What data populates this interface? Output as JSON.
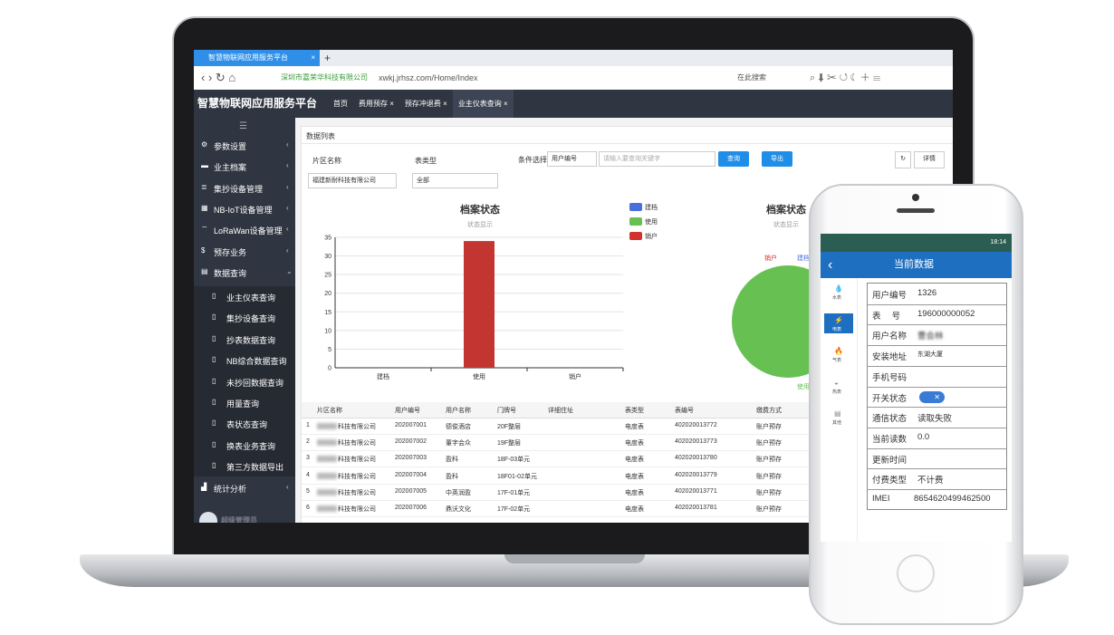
{
  "browser": {
    "tab": "智慧物联网应用服务平台",
    "site": "深圳市嘉荣华科技有限公司",
    "url": "xwkj.jrhsz.com/Home/Index",
    "search": "在此搜索"
  },
  "app": {
    "logo": "智慧物联网应用服务平台",
    "tabs": [
      "首页",
      "费用预存",
      "预存冲退费",
      "业主仪表查询"
    ],
    "menu": [
      "参数设置",
      "业主档案",
      "集抄设备管理",
      "NB-IoT设备管理",
      "LoRaWan设备管理",
      "预存业务",
      "数据查询"
    ],
    "submenu": [
      "业主仪表查询",
      "集抄设备查询",
      "抄表数据查询",
      "NB综合数据查询",
      "未抄回数据查询",
      "用量查询",
      "表状态查询",
      "换表业务查询",
      "第三方数据导出"
    ],
    "menu_last": "统计分析",
    "user": "超级管理员",
    "panel_title": "数据列表",
    "filters": {
      "area_label": "片区名称",
      "area_value": "福建新耐科技有限公司",
      "type_label": "表类型",
      "type_value": "全部",
      "cond_label": "条件选择",
      "cond_value": "用户编号",
      "placeholder": "请输入要查询关键字",
      "search": "查询",
      "export": "导出",
      "detail": "详情"
    },
    "table": {
      "columns": [
        "片区名称",
        "用户编号",
        "用户名称",
        "门牌号",
        "详细住址",
        "表类型",
        "表编号",
        "缴费方式"
      ],
      "rows": [
        [
          "1",
          "科技有限公司",
          "202007001",
          "德俊酒店",
          "20F整层",
          null,
          "电度表",
          "402020013772",
          "账户预存"
        ],
        [
          "2",
          "科技有限公司",
          "202007002",
          "董字会众",
          "19F整层",
          null,
          "电度表",
          "402020013773",
          "账户预存"
        ],
        [
          "3",
          "科技有限公司",
          "202007003",
          "盈科",
          "18F-03单元",
          null,
          "电度表",
          "402020013780",
          "账户预存"
        ],
        [
          "4",
          "科技有限公司",
          "202007004",
          "盈科",
          "18F01-02单元",
          null,
          "电度表",
          "402020013779",
          "账户预存"
        ],
        [
          "5",
          "科技有限公司",
          "202007005",
          "中英润盈",
          "17F-01单元",
          null,
          "电度表",
          "402020013771",
          "账户预存"
        ],
        [
          "6",
          "科技有限公司",
          "202007006",
          "鼎沃文化",
          "17F-02单元",
          null,
          "电度表",
          "402020013781",
          "账户预存"
        ]
      ]
    }
  },
  "chart_data": [
    {
      "type": "bar",
      "title": "档案状态",
      "subtitle": "状态显示",
      "categories": [
        "建档",
        "使用",
        "销户"
      ],
      "values": [
        0,
        34,
        0
      ],
      "color": "#c23531",
      "ylim": [
        0,
        35
      ],
      "yticks": [
        0,
        5,
        10,
        15,
        20,
        25,
        30,
        35
      ],
      "grid": true
    },
    {
      "type": "pie",
      "title": "档案状态",
      "subtitle": "状态显示",
      "categories": [
        "建档",
        "使用",
        "销户"
      ],
      "values": [
        0,
        34,
        0
      ],
      "colors": [
        "#4a6fdc",
        "#67c152",
        "#d2312e"
      ],
      "legend": "left"
    }
  ],
  "phone": {
    "time": "18:14",
    "title": "当前数据",
    "icons": [
      "水表",
      "电表",
      "气表",
      "热表",
      "其他"
    ],
    "fields": [
      {
        "label": "用户编号",
        "value": "1326"
      },
      {
        "label": "表　 号",
        "value": "196000000052"
      },
      {
        "label": "用户名称",
        "value": "曹会林"
      },
      {
        "label": "安装地址",
        "value": "东湖大厦"
      },
      {
        "label": "手机号码"
      },
      {
        "label": "开关状态"
      },
      {
        "label": "通信状态",
        "value": "读取失败"
      },
      {
        "label": "当前读数",
        "value": "0.0"
      },
      {
        "label": "更新时间"
      },
      {
        "label": "付费类型",
        "value": "不计费"
      },
      {
        "label": "IMEI",
        "value": "8654620499462500"
      }
    ]
  }
}
